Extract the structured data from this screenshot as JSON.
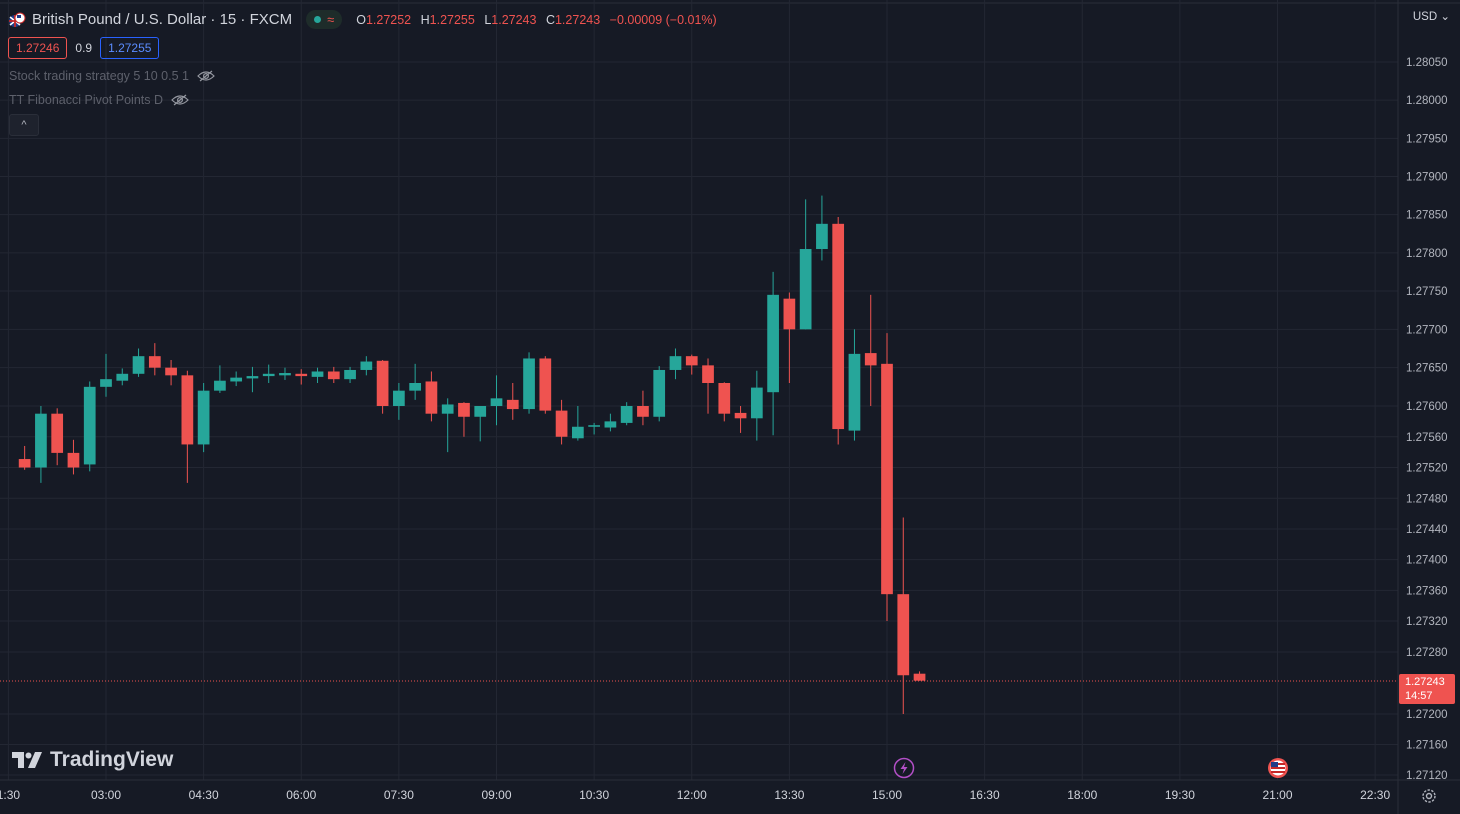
{
  "header": {
    "symbol_title": "British Pound / U.S. Dollar · 15 · FXCM",
    "ohlc": [
      {
        "key": "O",
        "value": "1.27252"
      },
      {
        "key": "H",
        "value": "1.27255"
      },
      {
        "key": "L",
        "value": "1.27243"
      },
      {
        "key": "C",
        "value": "1.27243"
      }
    ],
    "change": "−0.00009 (−0.01%)",
    "wave_icon": "≈"
  },
  "trade": {
    "sell_price": "1.27246",
    "spread": "0.9",
    "buy_price": "1.27255"
  },
  "indicators": [
    {
      "label": "Stock trading strategy 5 10 0.5 1"
    },
    {
      "label": "TT Fibonacci Pivot Points D"
    }
  ],
  "collapse_glyph": "^",
  "currency": "USD",
  "brand": "TradingView",
  "last_price": {
    "price": "1.27243",
    "countdown": "14:57"
  },
  "colors": {
    "up": "#26a69a",
    "down": "#ef5350",
    "background": "#161a25",
    "grid": "#232733"
  },
  "chart_data": {
    "type": "candlestick",
    "interval": "15",
    "y_ticks": [
      "1.28050",
      "1.28000",
      "1.27950",
      "1.27900",
      "1.27850",
      "1.27800",
      "1.27750",
      "1.27700",
      "1.27650",
      "1.27600",
      "1.27560",
      "1.27520",
      "1.27480",
      "1.27440",
      "1.27400",
      "1.27360",
      "1.27320",
      "1.27280",
      "1.27200",
      "1.27160",
      "1.27120"
    ],
    "x_ticks": [
      "1:30",
      "03:00",
      "04:30",
      "06:00",
      "07:30",
      "09:00",
      "10:30",
      "12:00",
      "13:30",
      "15:00",
      "16:30",
      "18:00",
      "19:30",
      "21:00",
      "22:30"
    ],
    "candles": [
      {
        "t": "01:45",
        "o": 1.27531,
        "h": 1.27548,
        "l": 1.27517,
        "c": 1.2752
      },
      {
        "t": "02:00",
        "o": 1.2752,
        "h": 1.276,
        "l": 1.275,
        "c": 1.2759
      },
      {
        "t": "02:15",
        "o": 1.2759,
        "h": 1.27597,
        "l": 1.27523,
        "c": 1.27539
      },
      {
        "t": "02:30",
        "o": 1.27539,
        "h": 1.27556,
        "l": 1.27511,
        "c": 1.2752
      },
      {
        "t": "02:45",
        "o": 1.27524,
        "h": 1.27632,
        "l": 1.27515,
        "c": 1.27625
      },
      {
        "t": "03:00",
        "o": 1.27625,
        "h": 1.27668,
        "l": 1.27612,
        "c": 1.27635
      },
      {
        "t": "03:15",
        "o": 1.27633,
        "h": 1.27649,
        "l": 1.27627,
        "c": 1.27642
      },
      {
        "t": "03:30",
        "o": 1.27642,
        "h": 1.27675,
        "l": 1.27638,
        "c": 1.27665
      },
      {
        "t": "03:45",
        "o": 1.27665,
        "h": 1.27682,
        "l": 1.2764,
        "c": 1.2765
      },
      {
        "t": "04:00",
        "o": 1.2765,
        "h": 1.2766,
        "l": 1.27627,
        "c": 1.2764
      },
      {
        "t": "04:15",
        "o": 1.2764,
        "h": 1.27646,
        "l": 1.275,
        "c": 1.2755
      },
      {
        "t": "04:30",
        "o": 1.2755,
        "h": 1.2763,
        "l": 1.2754,
        "c": 1.2762
      },
      {
        "t": "04:45",
        "o": 1.2762,
        "h": 1.27653,
        "l": 1.27617,
        "c": 1.27633
      },
      {
        "t": "05:00",
        "o": 1.27632,
        "h": 1.27645,
        "l": 1.27626,
        "c": 1.27637
      },
      {
        "t": "05:15",
        "o": 1.27636,
        "h": 1.27651,
        "l": 1.27618,
        "c": 1.27639
      },
      {
        "t": "05:30",
        "o": 1.27639,
        "h": 1.27654,
        "l": 1.2763,
        "c": 1.27642
      },
      {
        "t": "05:45",
        "o": 1.2764,
        "h": 1.2765,
        "l": 1.27634,
        "c": 1.27643
      },
      {
        "t": "06:00",
        "o": 1.27642,
        "h": 1.27648,
        "l": 1.27628,
        "c": 1.27639
      },
      {
        "t": "06:15",
        "o": 1.27638,
        "h": 1.2765,
        "l": 1.2763,
        "c": 1.27645
      },
      {
        "t": "06:30",
        "o": 1.27645,
        "h": 1.27651,
        "l": 1.2763,
        "c": 1.27635
      },
      {
        "t": "06:45",
        "o": 1.27635,
        "h": 1.27651,
        "l": 1.2763,
        "c": 1.27647
      },
      {
        "t": "07:00",
        "o": 1.27647,
        "h": 1.27665,
        "l": 1.2764,
        "c": 1.27658
      },
      {
        "t": "07:15",
        "o": 1.27659,
        "h": 1.2766,
        "l": 1.2759,
        "c": 1.276
      },
      {
        "t": "07:30",
        "o": 1.276,
        "h": 1.2763,
        "l": 1.27582,
        "c": 1.2762
      },
      {
        "t": "07:45",
        "o": 1.2762,
        "h": 1.27655,
        "l": 1.27608,
        "c": 1.2763
      },
      {
        "t": "08:00",
        "o": 1.27632,
        "h": 1.27645,
        "l": 1.2758,
        "c": 1.2759
      },
      {
        "t": "08:15",
        "o": 1.2759,
        "h": 1.2761,
        "l": 1.2754,
        "c": 1.27602
      },
      {
        "t": "08:30",
        "o": 1.27604,
        "h": 1.27605,
        "l": 1.2756,
        "c": 1.27586
      },
      {
        "t": "08:45",
        "o": 1.27586,
        "h": 1.276,
        "l": 1.27554,
        "c": 1.276
      },
      {
        "t": "09:00",
        "o": 1.276,
        "h": 1.2764,
        "l": 1.27575,
        "c": 1.2761
      },
      {
        "t": "09:15",
        "o": 1.27608,
        "h": 1.2763,
        "l": 1.27582,
        "c": 1.27596
      },
      {
        "t": "09:30",
        "o": 1.27596,
        "h": 1.2767,
        "l": 1.2759,
        "c": 1.27662
      },
      {
        "t": "09:45",
        "o": 1.27662,
        "h": 1.27665,
        "l": 1.2759,
        "c": 1.27594
      },
      {
        "t": "10:00",
        "o": 1.27594,
        "h": 1.27608,
        "l": 1.2755,
        "c": 1.2756
      },
      {
        "t": "10:15",
        "o": 1.27558,
        "h": 1.276,
        "l": 1.27555,
        "c": 1.27573
      },
      {
        "t": "10:30",
        "o": 1.27573,
        "h": 1.27578,
        "l": 1.27563,
        "c": 1.27575
      },
      {
        "t": "10:45",
        "o": 1.27572,
        "h": 1.2759,
        "l": 1.27567,
        "c": 1.2758
      },
      {
        "t": "11:00",
        "o": 1.27578,
        "h": 1.27605,
        "l": 1.27575,
        "c": 1.276
      },
      {
        "t": "11:15",
        "o": 1.276,
        "h": 1.2762,
        "l": 1.27575,
        "c": 1.27586
      },
      {
        "t": "11:30",
        "o": 1.27586,
        "h": 1.27652,
        "l": 1.2758,
        "c": 1.27647
      },
      {
        "t": "11:45",
        "o": 1.27647,
        "h": 1.27675,
        "l": 1.27635,
        "c": 1.27665
      },
      {
        "t": "12:00",
        "o": 1.27665,
        "h": 1.27667,
        "l": 1.27641,
        "c": 1.27653
      },
      {
        "t": "12:15",
        "o": 1.27653,
        "h": 1.27662,
        "l": 1.2759,
        "c": 1.2763
      },
      {
        "t": "12:30",
        "o": 1.2763,
        "h": 1.27631,
        "l": 1.2758,
        "c": 1.2759
      },
      {
        "t": "12:45",
        "o": 1.27591,
        "h": 1.276,
        "l": 1.27565,
        "c": 1.27584
      },
      {
        "t": "13:00",
        "o": 1.27584,
        "h": 1.27646,
        "l": 1.27555,
        "c": 1.27624
      },
      {
        "t": "13:15",
        "o": 1.27618,
        "h": 1.27775,
        "l": 1.27562,
        "c": 1.27745
      },
      {
        "t": "13:30",
        "o": 1.2774,
        "h": 1.27748,
        "l": 1.2763,
        "c": 1.277
      },
      {
        "t": "13:45",
        "o": 1.277,
        "h": 1.2787,
        "l": 1.277,
        "c": 1.27805
      },
      {
        "t": "14:00",
        "o": 1.27805,
        "h": 1.27875,
        "l": 1.2779,
        "c": 1.27838
      },
      {
        "t": "14:15",
        "o": 1.27838,
        "h": 1.27847,
        "l": 1.2755,
        "c": 1.2757
      },
      {
        "t": "14:30",
        "o": 1.27568,
        "h": 1.277,
        "l": 1.27555,
        "c": 1.27668
      },
      {
        "t": "14:45",
        "o": 1.27669,
        "h": 1.27745,
        "l": 1.276,
        "c": 1.27653
      },
      {
        "t": "15:00",
        "o": 1.27655,
        "h": 1.27695,
        "l": 1.2732,
        "c": 1.27355
      },
      {
        "t": "15:15",
        "o": 1.27355,
        "h": 1.27455,
        "l": 1.272,
        "c": 1.2725
      },
      {
        "t": "15:30",
        "o": 1.27252,
        "h": 1.27255,
        "l": 1.27243,
        "c": 1.27243
      }
    ]
  }
}
